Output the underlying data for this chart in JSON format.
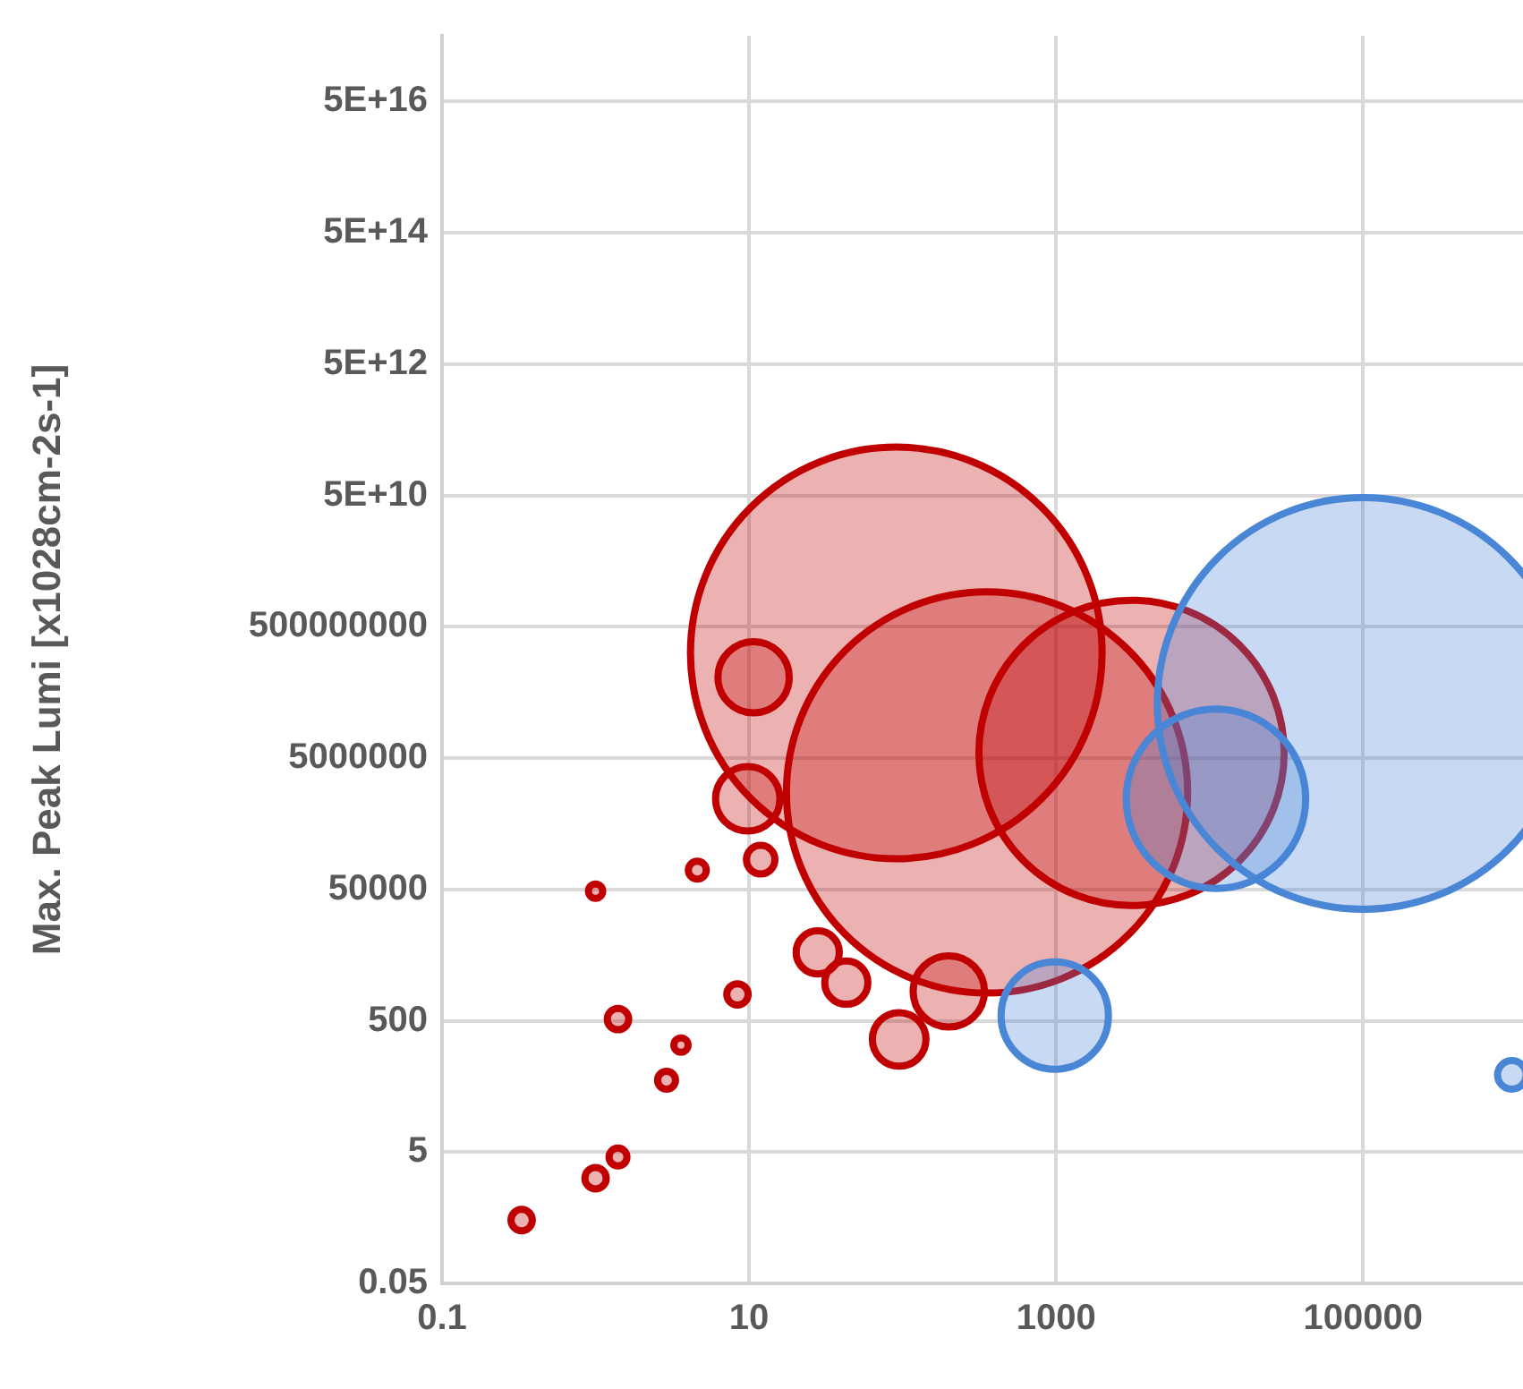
{
  "chart_data": {
    "type": "bubble",
    "ylabel": "Max. Peak Lumi [x1028cm-2s-1]",
    "log": "xy",
    "grid": true,
    "xlim": [
      0.1,
      1100000
    ],
    "xticks": [
      0.1,
      10,
      1000,
      100000
    ],
    "ylim": [
      0.05,
      5e+17
    ],
    "yticks": [
      0.05,
      5,
      500,
      50000,
      5000000,
      500000000,
      {
        "value": 50000000000.0,
        "label": "5E+10"
      },
      {
        "value": 5000000000000.0,
        "label": "5E+12"
      },
      {
        "value": 500000000000000.0,
        "label": "5E+14"
      },
      {
        "value": 5e+16,
        "label": "5E+16"
      }
    ],
    "series": [
      {
        "color": "#c00000",
        "x": [
          3100,
          355,
          91,
          200,
          0.33,
          1.0,
          1.4,
          2.9,
          3.6,
          1.4,
          8.4,
          1.0,
          4.6,
          11.9,
          9.8,
          10.7,
          28,
          43,
          95
        ],
        "values": [
          6000000,
          1500000,
          200000000,
          1400,
          0.46,
          2.0,
          4.2,
          62,
          213,
          530,
          1260,
          47000,
          98000,
          142000,
          1200000,
          85000000,
          5500,
          1900,
          260
        ],
        "sizes": [
          0.55,
          0.95,
          1,
          0.03,
          0.0027,
          0.0027,
          0.0019,
          0.0019,
          0.0012,
          0.0027,
          0.0027,
          0.0012,
          0.0019,
          0.0048,
          0.0245,
          0.03,
          0.011,
          0.011,
          0.017
        ]
      },
      {
        "color": "#4a86d6",
        "x": [
          980,
          11000,
          100000,
          930000
        ],
        "values": [
          600,
          1200000,
          34000000,
          75
        ],
        "sizes": [
          0.068,
          0.19,
          1,
          0.0048
        ]
      }
    ]
  }
}
